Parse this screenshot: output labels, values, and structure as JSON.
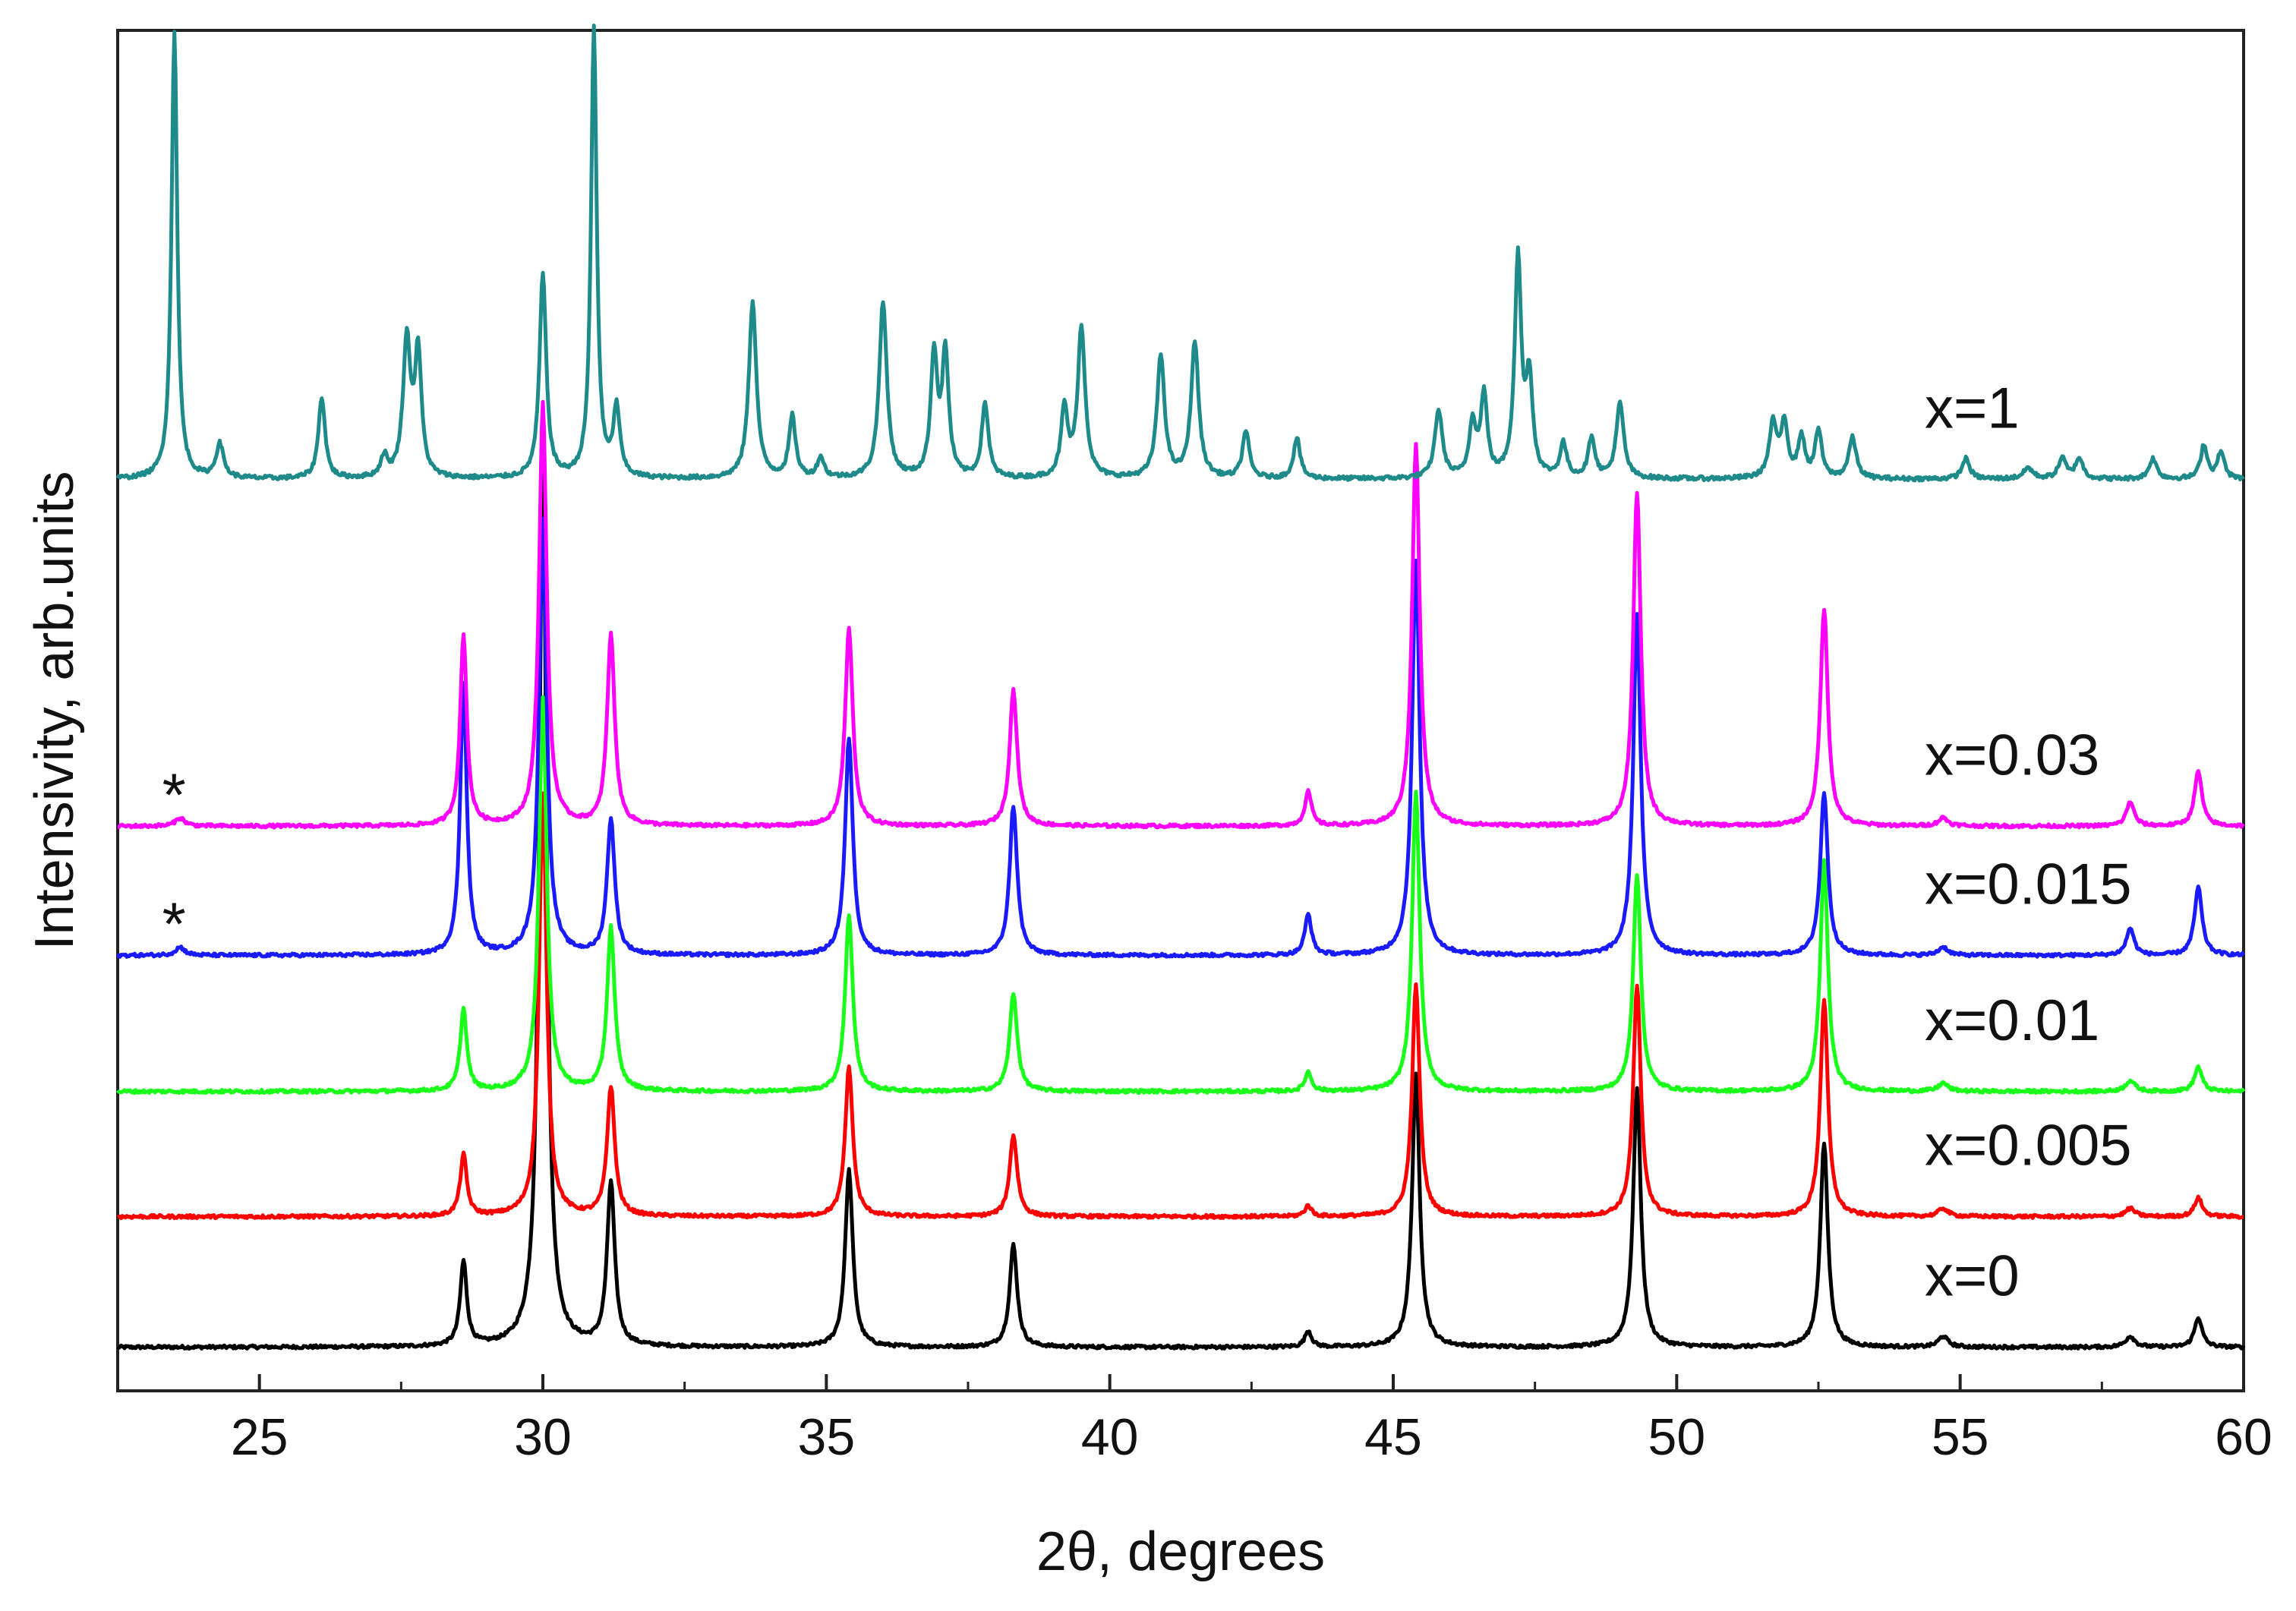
{
  "chart_data": {
    "type": "line",
    "title": "",
    "xlabel": "2θ, degrees",
    "ylabel": "Intensivity, arb.units",
    "xlim": [
      22.5,
      60
    ],
    "ylim": [
      0,
      10
    ],
    "x_ticks": [
      25,
      30,
      35,
      40,
      45,
      50,
      55,
      60
    ],
    "x_tick_labels": [
      "25",
      "30",
      "35",
      "40",
      "45",
      "50",
      "55",
      "60"
    ],
    "y_ticks_shown": false,
    "grid": false,
    "legend": "inline labels at right",
    "series": [
      {
        "name": "x=0",
        "color": "#000000",
        "baseline": 0.32,
        "noise": 0.012,
        "peaks": [
          [
            28.6,
            0.62,
            0.07
          ],
          [
            30.0,
            6.5,
            0.08
          ],
          [
            31.2,
            1.2,
            0.08
          ],
          [
            35.4,
            1.3,
            0.08
          ],
          [
            38.3,
            0.75,
            0.08
          ],
          [
            43.5,
            0.12,
            0.07
          ],
          [
            45.4,
            2.0,
            0.08
          ],
          [
            49.3,
            1.9,
            0.08
          ],
          [
            52.6,
            1.5,
            0.08
          ],
          [
            54.7,
            0.08,
            0.1
          ],
          [
            58.0,
            0.08,
            0.1
          ],
          [
            59.2,
            0.22,
            0.08
          ]
        ]
      },
      {
        "name": "x=0.005",
        "color": "#ff0000",
        "baseline": 1.28,
        "noise": 0.012,
        "peaks": [
          [
            28.6,
            0.45,
            0.07
          ],
          [
            30.0,
            3.1,
            0.08
          ],
          [
            31.2,
            0.95,
            0.08
          ],
          [
            35.4,
            1.1,
            0.08
          ],
          [
            38.3,
            0.6,
            0.08
          ],
          [
            43.5,
            0.08,
            0.07
          ],
          [
            45.4,
            1.7,
            0.08
          ],
          [
            49.3,
            1.7,
            0.08
          ],
          [
            52.6,
            1.6,
            0.08
          ],
          [
            54.7,
            0.06,
            0.1
          ],
          [
            58.0,
            0.06,
            0.1
          ],
          [
            59.2,
            0.14,
            0.08
          ]
        ]
      },
      {
        "name": "x=0.01",
        "color": "#1aff1a",
        "baseline": 2.2,
        "noise": 0.012,
        "peaks": [
          [
            28.6,
            0.6,
            0.07
          ],
          [
            30.0,
            2.9,
            0.08
          ],
          [
            31.2,
            1.2,
            0.08
          ],
          [
            35.4,
            1.3,
            0.08
          ],
          [
            38.3,
            0.72,
            0.08
          ],
          [
            43.5,
            0.14,
            0.07
          ],
          [
            45.4,
            2.2,
            0.08
          ],
          [
            49.3,
            1.6,
            0.08
          ],
          [
            52.6,
            1.7,
            0.08
          ],
          [
            54.7,
            0.06,
            0.1
          ],
          [
            58.0,
            0.08,
            0.1
          ],
          [
            59.2,
            0.18,
            0.08
          ]
        ]
      },
      {
        "name": "x=0.015",
        "color": "#1a1aff",
        "baseline": 3.2,
        "noise": 0.012,
        "peaks": [
          [
            23.6,
            0.06,
            0.1
          ],
          [
            28.6,
            2.0,
            0.07
          ],
          [
            30.0,
            3.2,
            0.08
          ],
          [
            31.2,
            1.0,
            0.08
          ],
          [
            35.4,
            1.6,
            0.08
          ],
          [
            38.3,
            1.1,
            0.08
          ],
          [
            43.5,
            0.3,
            0.07
          ],
          [
            45.4,
            2.9,
            0.08
          ],
          [
            49.3,
            2.5,
            0.08
          ],
          [
            52.6,
            1.2,
            0.08
          ],
          [
            54.7,
            0.06,
            0.1
          ],
          [
            58.0,
            0.2,
            0.08
          ],
          [
            59.2,
            0.5,
            0.08
          ]
        ]
      },
      {
        "name": "x=0.03",
        "color": "#ff00ff",
        "baseline": 4.15,
        "noise": 0.012,
        "peaks": [
          [
            23.6,
            0.06,
            0.1
          ],
          [
            28.6,
            1.4,
            0.07
          ],
          [
            30.0,
            3.1,
            0.08
          ],
          [
            31.2,
            1.4,
            0.08
          ],
          [
            35.4,
            1.45,
            0.08
          ],
          [
            38.3,
            1.0,
            0.08
          ],
          [
            43.5,
            0.25,
            0.07
          ],
          [
            45.4,
            2.8,
            0.08
          ],
          [
            49.3,
            2.45,
            0.08
          ],
          [
            52.6,
            1.6,
            0.08
          ],
          [
            54.7,
            0.06,
            0.1
          ],
          [
            58.0,
            0.18,
            0.08
          ],
          [
            59.2,
            0.4,
            0.08
          ]
        ]
      },
      {
        "name": "x=1",
        "color": "#1f8a8a",
        "baseline": 6.7,
        "noise": 0.015,
        "peaks": [
          [
            23.5,
            3.3,
            0.06
          ],
          [
            24.3,
            0.25,
            0.08
          ],
          [
            26.1,
            0.6,
            0.07
          ],
          [
            27.2,
            0.15,
            0.07
          ],
          [
            27.6,
            1.0,
            0.08
          ],
          [
            27.8,
            0.9,
            0.07
          ],
          [
            30.0,
            1.5,
            0.07
          ],
          [
            30.9,
            3.3,
            0.06
          ],
          [
            31.3,
            0.5,
            0.07
          ],
          [
            33.7,
            1.3,
            0.08
          ],
          [
            34.4,
            0.45,
            0.07
          ],
          [
            34.9,
            0.15,
            0.07
          ],
          [
            36.0,
            1.3,
            0.08
          ],
          [
            36.9,
            0.9,
            0.07
          ],
          [
            37.1,
            0.9,
            0.07
          ],
          [
            37.8,
            0.55,
            0.07
          ],
          [
            39.2,
            0.5,
            0.07
          ],
          [
            39.5,
            1.1,
            0.08
          ],
          [
            40.9,
            0.9,
            0.08
          ],
          [
            41.5,
            1.0,
            0.08
          ],
          [
            42.4,
            0.35,
            0.07
          ],
          [
            43.3,
            0.3,
            0.07
          ],
          [
            45.8,
            0.5,
            0.08
          ],
          [
            46.4,
            0.4,
            0.07
          ],
          [
            46.6,
            0.6,
            0.07
          ],
          [
            47.2,
            1.6,
            0.07
          ],
          [
            47.4,
            0.7,
            0.07
          ],
          [
            48.0,
            0.25,
            0.07
          ],
          [
            48.5,
            0.3,
            0.07
          ],
          [
            49.0,
            0.55,
            0.08
          ],
          [
            51.7,
            0.4,
            0.08
          ],
          [
            51.9,
            0.4,
            0.07
          ],
          [
            52.2,
            0.3,
            0.07
          ],
          [
            52.5,
            0.35,
            0.07
          ],
          [
            53.1,
            0.3,
            0.08
          ],
          [
            55.1,
            0.15,
            0.08
          ],
          [
            56.2,
            0.08,
            0.1
          ],
          [
            56.8,
            0.15,
            0.08
          ],
          [
            57.1,
            0.15,
            0.08
          ],
          [
            58.4,
            0.15,
            0.08
          ],
          [
            59.3,
            0.25,
            0.07
          ],
          [
            59.6,
            0.2,
            0.07
          ]
        ]
      }
    ],
    "annotations": [
      {
        "text": "*",
        "x": 23.6,
        "series": "x=0.03"
      },
      {
        "text": "*",
        "x": 23.6,
        "series": "x=0.015"
      }
    ]
  }
}
